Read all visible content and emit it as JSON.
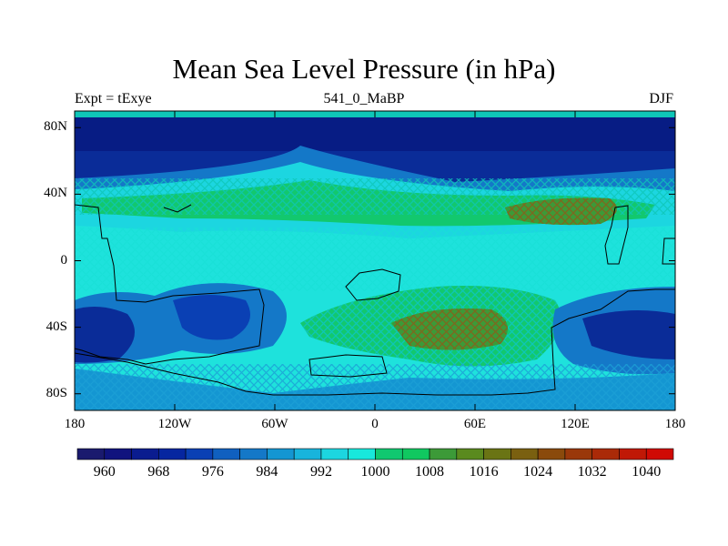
{
  "title": "Mean Sea Level Pressure (in hPa)",
  "subtitle_left": "Expt = tExye",
  "subtitle_center": "541_0_MaBP",
  "subtitle_right": "DJF",
  "y_axis_ticks": [
    {
      "label": "80N",
      "lat": 80
    },
    {
      "label": "40N",
      "lat": 40
    },
    {
      "label": "0",
      "lat": 0
    },
    {
      "label": "40S",
      "lat": -40
    },
    {
      "label": "80S",
      "lat": -80
    }
  ],
  "x_axis_ticks": [
    {
      "label": "180",
      "lon": -180
    },
    {
      "label": "120W",
      "lon": -120
    },
    {
      "label": "60W",
      "lon": -60
    },
    {
      "label": "0",
      "lon": 0
    },
    {
      "label": "60E",
      "lon": 60
    },
    {
      "label": "120E",
      "lon": 120
    },
    {
      "label": "180",
      "lon": 180
    }
  ],
  "colorbar": {
    "labels": [
      "960",
      "968",
      "976",
      "984",
      "992",
      "1000",
      "1008",
      "1016",
      "1024",
      "1032",
      "1040"
    ],
    "min": 956,
    "step": 4,
    "colors": [
      "#1a1a6e",
      "#10137e",
      "#0a1c8f",
      "#0626a0",
      "#0a40b4",
      "#1060c0",
      "#1478c8",
      "#1496d2",
      "#18b4dc",
      "#1cd6e0",
      "#18e8dc",
      "#10c870",
      "#10c860",
      "#3c9a38",
      "#5a8a1e",
      "#6a7414",
      "#7a6010",
      "#8a4a0c",
      "#9a380a",
      "#aa2a08",
      "#c01806",
      "#d00a04"
    ]
  }
}
